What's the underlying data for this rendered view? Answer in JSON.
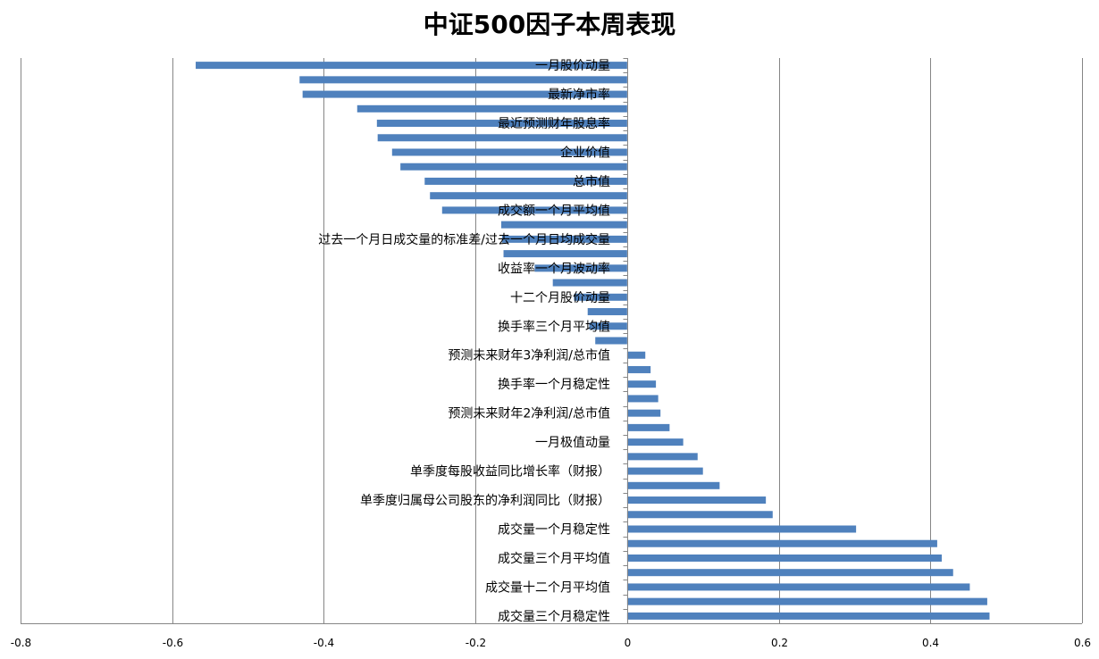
{
  "chart_data": {
    "type": "bar",
    "orientation": "horizontal",
    "title": "中证500因子本周表现",
    "xlabel": "",
    "ylabel": "",
    "xlim": [
      -0.8,
      0.6
    ],
    "xticks": [
      "-0.8",
      "-0.6",
      "-0.4",
      "-0.2",
      "0",
      "0.2",
      "0.4",
      "0.6"
    ],
    "xtick_values": [
      -0.8,
      -0.6,
      -0.4,
      -0.2,
      0,
      0.2,
      0.4,
      0.6
    ],
    "grid": true,
    "bar_color": "#4F81BD",
    "categories": [
      "一月股价动量",
      "",
      "最新净市率",
      "",
      "最近预测财年股息率",
      "",
      "企业价值",
      "",
      "总市值",
      "",
      "成交额一个月平均值",
      "",
      "过去一个月日成交量的标准差/过去一个月日均成交量",
      "",
      "收益率一个月波动率",
      "",
      "十二个月股价动量",
      "",
      "换手率三个月平均值",
      "",
      "预测未来财年3净利润/总市值",
      "",
      "换手率一个月稳定性",
      "",
      "预测未来财年2净利润/总市值",
      "",
      "一月极值动量",
      "",
      "单季度每股收益同比增长率（财报）",
      "",
      "单季度归属母公司股东的净利润同比（财报）",
      "",
      "成交量一个月稳定性",
      "",
      "成交量三个月平均值",
      "",
      "成交量十二个月平均值",
      "",
      "成交量三个月稳定性"
    ],
    "values": [
      -0.569,
      -0.432,
      -0.428,
      -0.356,
      -0.33,
      -0.329,
      -0.31,
      -0.299,
      -0.267,
      -0.26,
      -0.244,
      -0.166,
      -0.165,
      -0.163,
      -0.122,
      -0.098,
      -0.07,
      -0.052,
      -0.05,
      -0.042,
      0.024,
      0.031,
      0.038,
      0.041,
      0.044,
      0.056,
      0.074,
      0.093,
      0.1,
      0.122,
      0.183,
      0.192,
      0.302,
      0.409,
      0.415,
      0.43,
      0.452,
      0.475,
      0.478
    ]
  }
}
